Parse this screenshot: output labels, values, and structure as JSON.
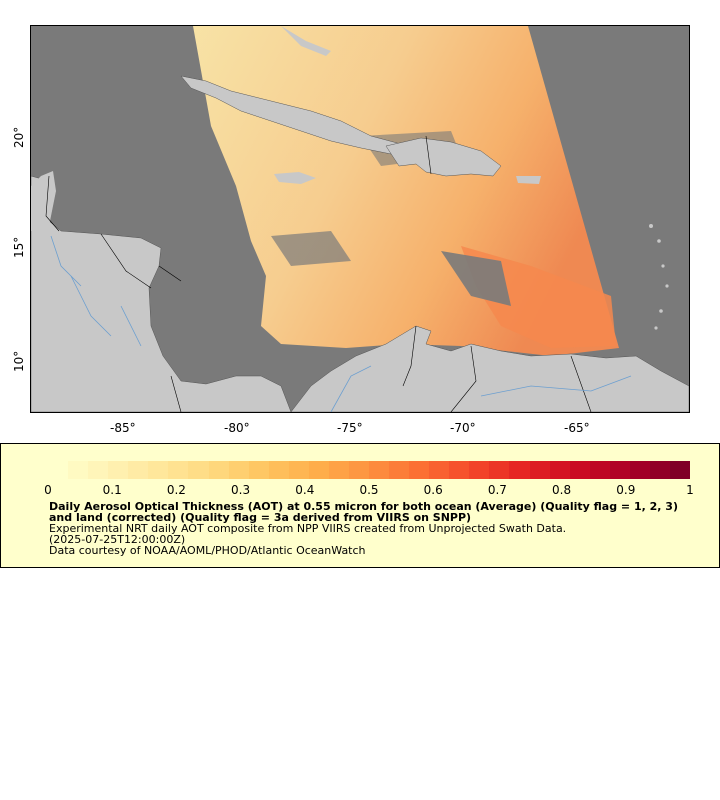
{
  "map": {
    "longitude_ticks": [
      "-85°",
      "-80°",
      "-75°",
      "-70°",
      "-65°"
    ],
    "latitude_ticks": [
      "20°",
      "15°",
      "10°"
    ],
    "colors": {
      "ocean_no_data": "#7a7a7a",
      "land": "#c8c8c8",
      "borders": "#000000",
      "rivers": "#6c9fd0"
    }
  },
  "legend": {
    "colorbar_labels": [
      "0",
      "0.1",
      "0.2",
      "0.3",
      "0.4",
      "0.5",
      "0.6",
      "0.7",
      "0.8",
      "0.9",
      "1"
    ],
    "colorbar_colors": [
      "#ffffcc",
      "#fff2b3",
      "#ffe699",
      "#fed97f",
      "#fec460",
      "#feae4a",
      "#fd9140",
      "#fc6f33",
      "#f4482a",
      "#e42323",
      "#cc0c22",
      "#ac0026",
      "#800026"
    ],
    "title": "Daily Aerosol Optical Thickness (AOT) at 0.55 micron for both ocean (Average) (Quality flag = 1, 2, 3) and land (corrected) (Quality flag = 3a derived from VIIRS on SNPP)",
    "description": "Experimental NRT daily AOT composite from NPP VIIRS created from Unprojected Swath Data.",
    "timestamp": "(2025-07-25T12:00:00Z)",
    "credit": "Data courtesy of NOAA/AOML/PHOD/Atlantic OceanWatch"
  }
}
